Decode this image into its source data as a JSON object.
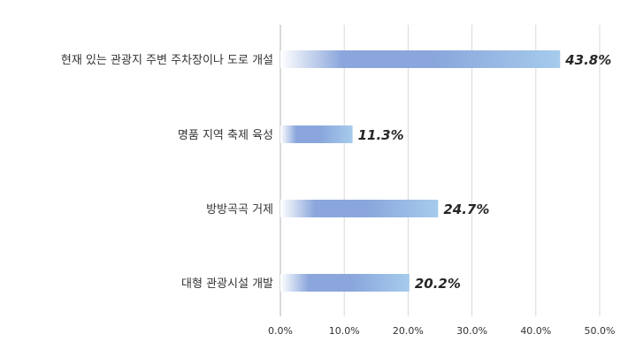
{
  "chart_data": {
    "type": "bar",
    "orientation": "horizontal",
    "categories": [
      "현재 있는 관광지 주변 주차장이나 도로 개설",
      "명품 지역 축제 육성",
      "방방곡곡 거제",
      "대형 관광시설 개발"
    ],
    "values": [
      43.8,
      11.3,
      24.7,
      20.2
    ],
    "value_labels": [
      "43.8%",
      "11.3%",
      "24.7%",
      "20.2%"
    ],
    "x_ticks": [
      "0.0%",
      "10.0%",
      "20.0%",
      "30.0%",
      "40.0%",
      "50.0%"
    ],
    "xlim": [
      0,
      50
    ],
    "grid": true,
    "title": "",
    "xlabel": "",
    "ylabel": "",
    "colors": {
      "bar_light": "#a6cbec",
      "bar_mid": "#8aa6dc",
      "bar_start": "#ffffff",
      "grid": "#d9d9d9",
      "axis": "#bfbfbf",
      "text": "#333333",
      "value_text": "#262626"
    }
  }
}
